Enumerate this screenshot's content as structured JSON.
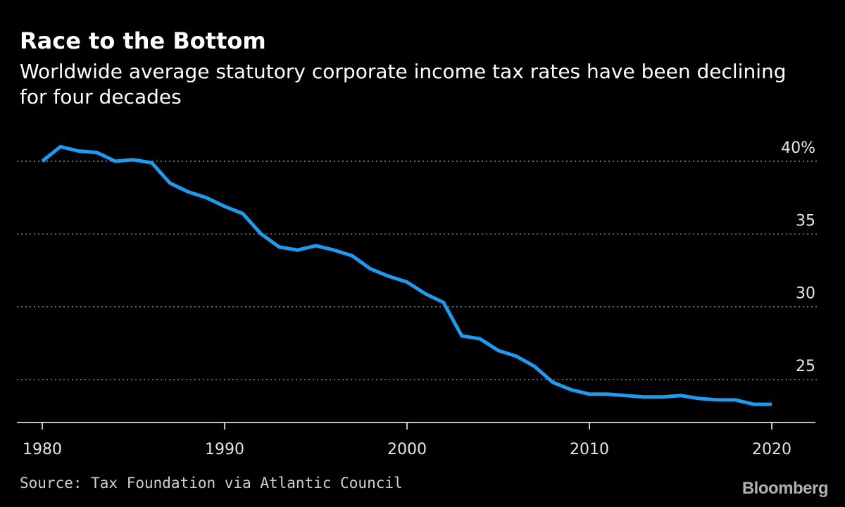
{
  "header": {
    "title": "Race to the Bottom",
    "subtitle": "Worldwide average statutory corporate income tax rates have been declining for four decades"
  },
  "footer": {
    "source": "Source: Tax Foundation via Atlantic Council",
    "brand": "Bloomberg"
  },
  "colors": {
    "background": "#000000",
    "line": "#1e9bef",
    "grid": "#8a8a8a",
    "text": "#ffffff"
  },
  "chart_data": {
    "type": "line",
    "title": "Race to the Bottom",
    "subtitle": "Worldwide average statutory corporate income tax rates have been declining for four decades",
    "xlabel": "",
    "ylabel": "",
    "xlim": [
      1979,
      2022
    ],
    "ylim": [
      22,
      41
    ],
    "grid": true,
    "y_axis_side": "right",
    "x_ticks": [
      1980,
      1990,
      2000,
      2010,
      2020
    ],
    "x_tick_labels": [
      "1980",
      "1990",
      "2000",
      "2010",
      "2020"
    ],
    "y_ticks": [
      25,
      30,
      35,
      40
    ],
    "y_tick_labels": [
      "25",
      "30",
      "35",
      "40%"
    ],
    "series": [
      {
        "x": [
          1980,
          1981,
          1982,
          1983,
          1984,
          1985,
          1986,
          1987,
          1988,
          1989,
          1990,
          1991,
          1992,
          1993,
          1994,
          1995,
          1996,
          1997,
          1998,
          1999,
          2000,
          2001,
          2002,
          2003,
          2004,
          2005,
          2006,
          2007,
          2008,
          2009,
          2010,
          2011,
          2012,
          2013,
          2014,
          2015,
          2016,
          2017,
          2018,
          2019,
          2020
        ],
        "values": [
          40.0,
          41.0,
          40.7,
          40.6,
          40.0,
          40.1,
          39.9,
          38.5,
          37.9,
          37.5,
          36.9,
          36.4,
          35.0,
          34.1,
          33.9,
          34.2,
          33.9,
          33.5,
          32.6,
          32.1,
          31.7,
          30.9,
          30.3,
          28.0,
          27.8,
          27.0,
          26.6,
          25.9,
          24.8,
          24.3,
          24.0,
          24.0,
          23.9,
          23.8,
          23.8,
          23.9,
          23.7,
          23.6,
          23.6,
          23.3,
          23.3
        ]
      }
    ]
  }
}
